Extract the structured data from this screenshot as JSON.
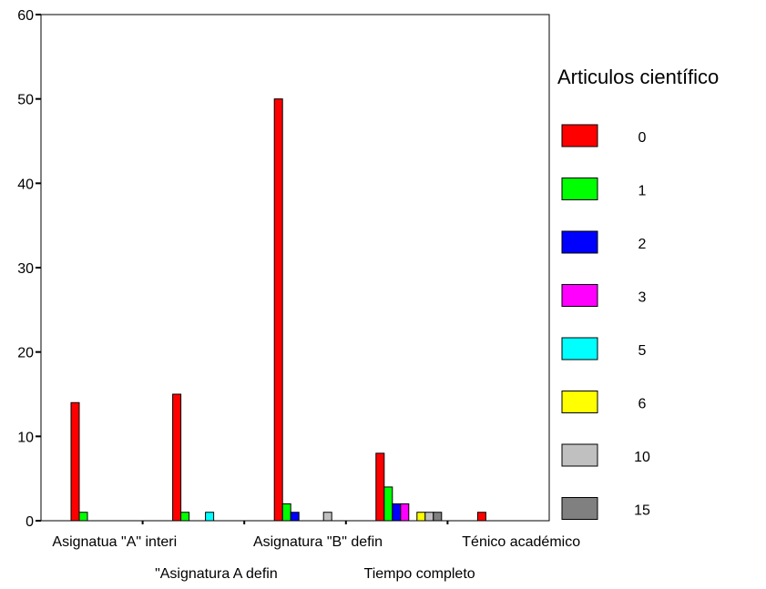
{
  "chart_data": {
    "type": "bar",
    "title": "",
    "xlabel": "",
    "ylabel": "",
    "ylim": [
      0,
      60
    ],
    "yticks": [
      0,
      10,
      20,
      30,
      40,
      50,
      60
    ],
    "grid": false,
    "legend": {
      "title": "Articulos científico",
      "placement": "right"
    },
    "categories": [
      "Asignatua \"A\" interi",
      "\"Asignatura  A defin",
      "Asignatura \"B\" defin",
      "Tiempo completo",
      "Ténico académico"
    ],
    "series": [
      {
        "name": "0",
        "color": "#ff0000",
        "values": [
          14,
          15,
          50,
          8,
          1
        ]
      },
      {
        "name": "1",
        "color": "#00ff00",
        "values": [
          1,
          1,
          2,
          4,
          0
        ]
      },
      {
        "name": "2",
        "color": "#0000ff",
        "values": [
          0,
          0,
          1,
          2,
          0
        ]
      },
      {
        "name": "3",
        "color": "#ff00ff",
        "values": [
          0,
          0,
          0,
          2,
          0
        ]
      },
      {
        "name": "5",
        "color": "#00ffff",
        "values": [
          0,
          1,
          0,
          0,
          0
        ]
      },
      {
        "name": "6",
        "color": "#ffff00",
        "values": [
          0,
          0,
          0,
          1,
          0
        ]
      },
      {
        "name": "10",
        "color": "#c0c0c0",
        "values": [
          0,
          0,
          1,
          1,
          0
        ]
      },
      {
        "name": "15",
        "color": "#808080",
        "values": [
          0,
          0,
          0,
          1,
          0
        ]
      }
    ]
  }
}
